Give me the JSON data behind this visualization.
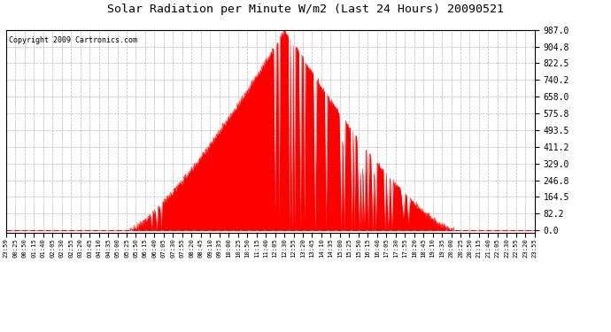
{
  "title": "Solar Radiation per Minute W/m2 (Last 24 Hours) 20090521",
  "copyright": "Copyright 2009 Cartronics.com",
  "background_color": "#ffffff",
  "plot_bg_color": "#ffffff",
  "fill_color": "#ff0000",
  "line_color": "#ff0000",
  "dashed_line_color": "#ff0000",
  "grid_color": "#b0b0b0",
  "ymin": 0.0,
  "ymax": 987.0,
  "yticks": [
    0.0,
    82.2,
    164.5,
    246.8,
    329.0,
    411.2,
    493.5,
    575.8,
    658.0,
    740.2,
    822.5,
    904.8,
    987.0
  ],
  "xtick_labels": [
    "23:59",
    "00:25",
    "00:50",
    "01:15",
    "01:40",
    "02:05",
    "02:30",
    "02:55",
    "03:20",
    "03:45",
    "04:10",
    "04:35",
    "05:00",
    "05:25",
    "05:50",
    "06:15",
    "06:40",
    "07:05",
    "07:30",
    "07:55",
    "08:20",
    "08:45",
    "09:10",
    "09:35",
    "10:00",
    "10:25",
    "10:50",
    "11:15",
    "11:40",
    "12:05",
    "12:30",
    "12:55",
    "13:20",
    "13:45",
    "14:10",
    "14:35",
    "15:00",
    "15:25",
    "15:50",
    "16:15",
    "16:40",
    "17:05",
    "17:30",
    "17:55",
    "18:20",
    "18:45",
    "19:10",
    "19:35",
    "20:00",
    "20:25",
    "20:50",
    "21:15",
    "21:40",
    "22:05",
    "22:30",
    "22:55",
    "23:20",
    "23:55"
  ],
  "sunrise_minute": 335,
  "sunset_minute": 1220,
  "peak_minute": 760,
  "peak_value": 987.0,
  "n_points": 1440
}
